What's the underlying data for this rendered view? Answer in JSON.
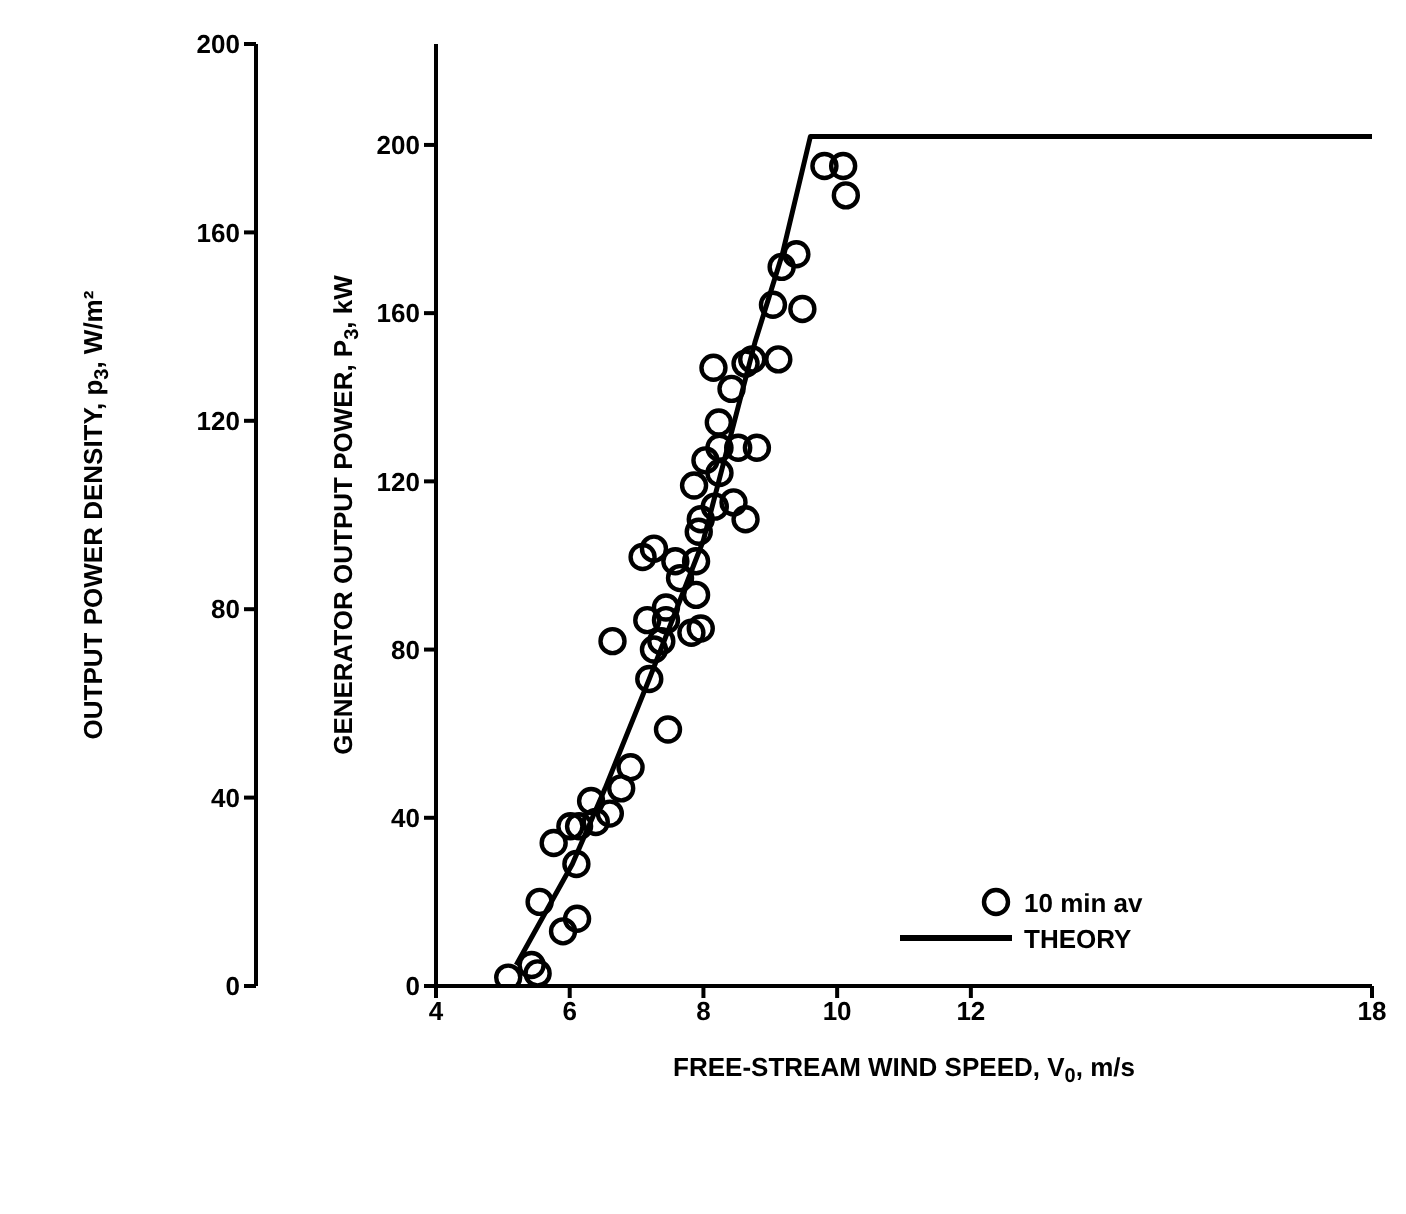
{
  "chart_data": {
    "type": "scatter",
    "xlabel": "FREE-STREAM WIND SPEED, V$_{0}$, m/s",
    "ylabel": "GENERATOR OUTPUT POWER, P$_{3}$, kW",
    "y2label": "OUTPUT POWER DENSITY, p$_{3}$, W/m²",
    "xlim": [
      4,
      18
    ],
    "xticks": [
      4,
      6,
      8,
      10,
      12,
      18
    ],
    "ylim": [
      0,
      224
    ],
    "yticks": [
      0,
      40,
      80,
      120,
      160,
      200
    ],
    "y2lim": [
      0,
      200
    ],
    "y2ticks": [
      0,
      40,
      80,
      120,
      160,
      200
    ],
    "grid": false,
    "legend": "bottom right",
    "series": [
      {
        "name": "10 min av",
        "marker": "circle",
        "color": "#000000",
        "x": [
          9.81,
          10.09,
          10.13,
          9.39,
          9.17,
          9.48,
          9.04,
          9.12,
          8.73,
          8.63,
          8.15,
          8.42,
          8.23,
          8.8,
          8.52,
          8.03,
          8.24,
          8.24,
          7.86,
          8.45,
          8.63,
          8.17,
          7.96,
          7.93,
          7.09,
          7.26,
          7.58,
          7.89,
          7.65,
          7.89,
          7.44,
          7.16,
          7.44,
          7.82,
          7.96,
          7.26,
          7.37,
          6.64,
          7.19,
          7.47,
          6.91,
          6.77,
          6.6,
          6.32,
          6.39,
          6.14,
          6.01,
          5.76,
          6.1,
          5.55,
          5.9,
          6.11,
          5.43,
          5.52,
          5.08
        ],
        "values": [
          195,
          195,
          188,
          174,
          171,
          161,
          162,
          149,
          149,
          148,
          147,
          142,
          134,
          128,
          128,
          125,
          128,
          122,
          119,
          115,
          111,
          114,
          111,
          108,
          102,
          104,
          101,
          101,
          97,
          93,
          90,
          87,
          87,
          84,
          85,
          80,
          82,
          82,
          73,
          61,
          52,
          47,
          41,
          44,
          39,
          38,
          38,
          34,
          29,
          20,
          13,
          16,
          5,
          3,
          2
        ]
      },
      {
        "name": "THEORY",
        "type": "line",
        "line_style": "solid",
        "color": "#000000",
        "x": [
          5.2,
          6.04,
          6.53,
          7.19,
          8.0,
          8.77,
          9.18,
          9.6,
          18
        ],
        "values": [
          5,
          29,
          47,
          73,
          106,
          153,
          174,
          202,
          202
        ]
      }
    ]
  }
}
